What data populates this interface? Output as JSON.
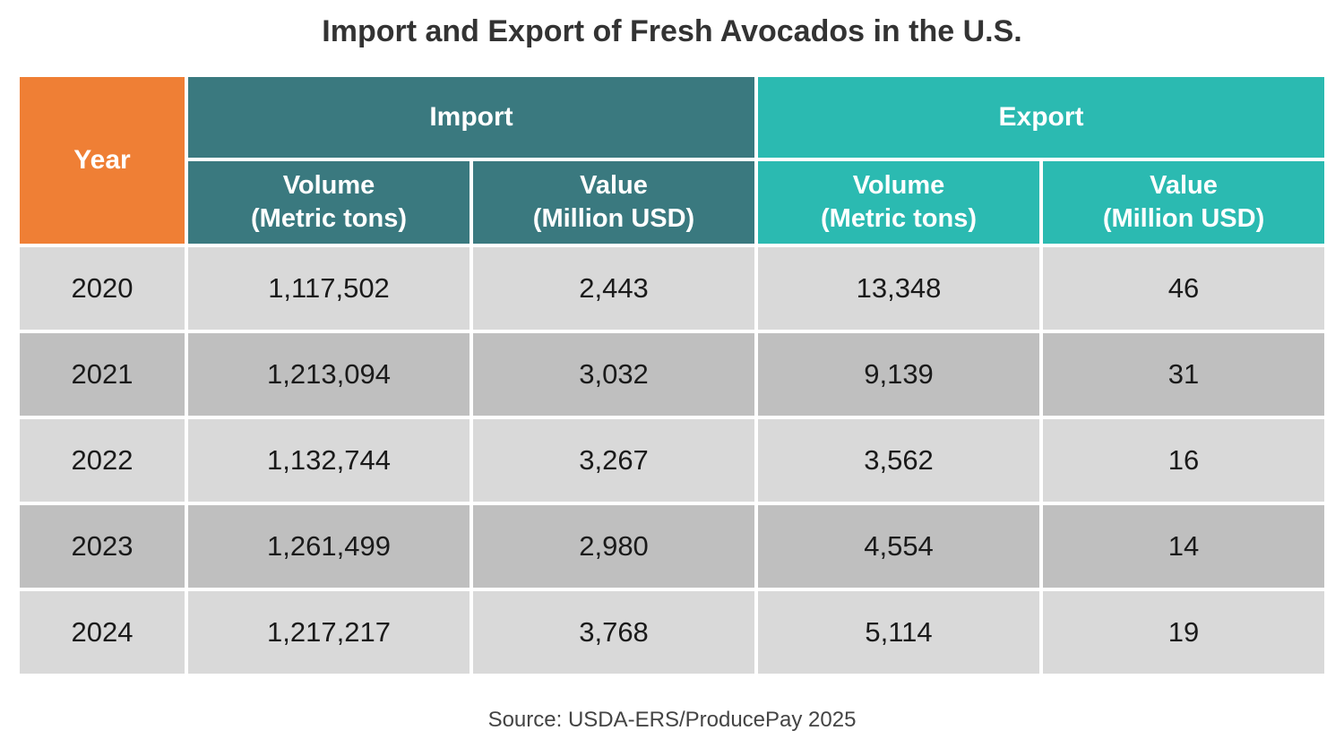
{
  "chart_data": {
    "type": "table",
    "title": "Import and Export of Fresh Avocados in the U.S.",
    "header": {
      "year": "Year",
      "groups": [
        "Import",
        "Export"
      ],
      "subcolumns": [
        {
          "line1": "Volume",
          "line2": "(Metric tons)"
        },
        {
          "line1": "Value",
          "line2": "(Million USD)"
        },
        {
          "line1": "Volume",
          "line2": "(Metric tons)"
        },
        {
          "line1": "Value",
          "line2": "(Million USD)"
        }
      ]
    },
    "rows": [
      {
        "year": "2020",
        "import_volume": "1,117,502",
        "import_value": "2,443",
        "export_volume": "13,348",
        "export_value": "46"
      },
      {
        "year": "2021",
        "import_volume": "1,213,094",
        "import_value": "3,032",
        "export_volume": "9,139",
        "export_value": "31"
      },
      {
        "year": "2022",
        "import_volume": "1,132,744",
        "import_value": "3,267",
        "export_volume": "3,562",
        "export_value": "16"
      },
      {
        "year": "2023",
        "import_volume": "1,261,499",
        "import_value": "2,980",
        "export_volume": "4,554",
        "export_value": "14"
      },
      {
        "year": "2024",
        "import_volume": "1,217,217",
        "import_value": "3,768",
        "export_volume": "5,114",
        "export_value": "19"
      }
    ],
    "source": "Source: USDA-ERS/ProducePay 2025"
  },
  "colors": {
    "year_header": "#ef7f35",
    "import_header": "#3a797f",
    "export_header": "#2bbab1",
    "row_light": "#d9d9d9",
    "row_dark": "#bfbfbf"
  }
}
